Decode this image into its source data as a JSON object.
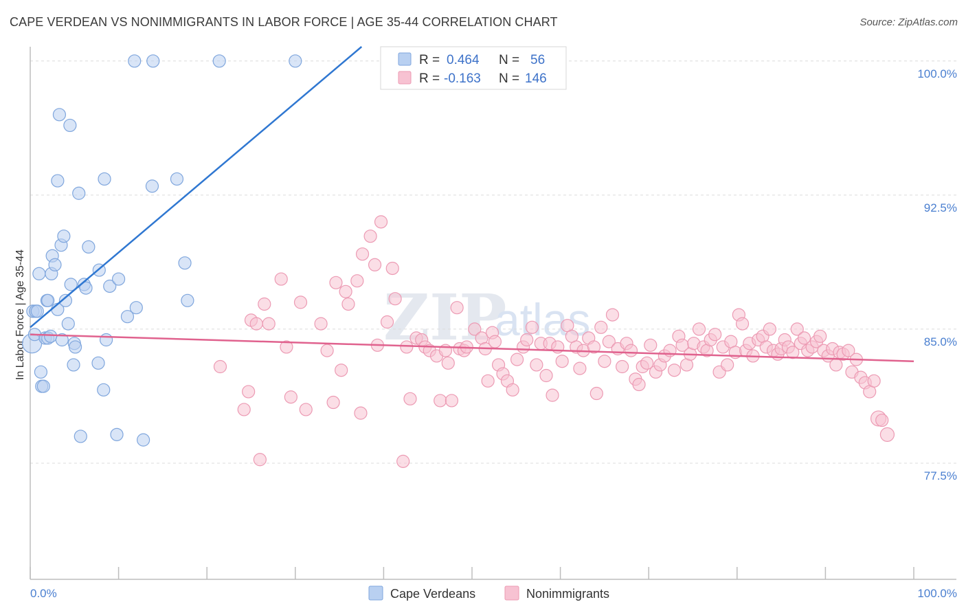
{
  "title": "CAPE VERDEAN VS NONIMMIGRANTS IN LABOR FORCE | AGE 35-44 CORRELATION CHART",
  "source": "Source: ZipAtlas.com",
  "watermark": {
    "zip": "ZIP",
    "atlas": "atlas"
  },
  "colors": {
    "blue_fill": "#b9d0f1",
    "blue_stroke": "#7fa6dd",
    "blue_line": "#2f77d1",
    "pink_fill": "#f7c2d2",
    "pink_stroke": "#ec9ab3",
    "pink_line": "#e0628e",
    "grid": "#dcdcdc",
    "tick_text": "#4a7fd0"
  },
  "legend": {
    "row1": {
      "r_label": "R = ",
      "r_value": "0.464",
      "n_label": "N = ",
      "n_value": "56"
    },
    "row2": {
      "r_label": "R = ",
      "r_value": "-0.163",
      "n_label": "N = ",
      "n_value": "146"
    }
  },
  "bottom_legend": {
    "series1": "Cape Verdeans",
    "series2": "Nonimmigrants"
  },
  "chart_data": {
    "type": "scatter",
    "title": "CAPE VERDEAN VS NONIMMIGRANTS IN LABOR FORCE | AGE 35-44 CORRELATION CHART",
    "xlabel": "",
    "ylabel": "In Labor Force | Age 35-44",
    "xlim": [
      0,
      100
    ],
    "ylim": [
      71.0,
      100.8
    ],
    "x_tick_labels": [
      "0.0%",
      "100.0%"
    ],
    "y_ticks": [
      77.5,
      85.0,
      92.5,
      100.0
    ],
    "y_tick_labels": [
      "77.5%",
      "85.0%",
      "92.5%",
      "100.0%"
    ],
    "series": [
      {
        "name": "Cape Verdeans",
        "r": 0.464,
        "n": 56,
        "trend": {
          "x0": 0.0,
          "y0": 85.1,
          "x1": 37.5,
          "y1": 100.8
        },
        "points": [
          [
            0.2,
            84.2,
            14
          ],
          [
            0.3,
            86.0,
            9
          ],
          [
            0.5,
            84.7,
            9
          ],
          [
            0.6,
            86.0,
            9
          ],
          [
            0.8,
            86.0,
            9
          ],
          [
            1.0,
            88.1,
            9
          ],
          [
            1.2,
            82.6,
            9
          ],
          [
            1.3,
            81.8,
            9
          ],
          [
            1.5,
            81.8,
            9
          ],
          [
            1.7,
            84.5,
            9
          ],
          [
            1.9,
            86.6,
            9
          ],
          [
            2.0,
            86.6,
            9
          ],
          [
            2.0,
            84.5,
            9
          ],
          [
            2.3,
            84.6,
            9
          ],
          [
            2.4,
            88.1,
            9
          ],
          [
            2.5,
            89.1,
            9
          ],
          [
            2.8,
            88.6,
            9
          ],
          [
            3.1,
            86.1,
            9
          ],
          [
            3.1,
            93.3,
            9
          ],
          [
            3.3,
            97.0,
            9
          ],
          [
            3.5,
            89.7,
            9
          ],
          [
            3.6,
            84.4,
            9
          ],
          [
            3.8,
            90.2,
            9
          ],
          [
            4.0,
            86.6,
            9
          ],
          [
            4.3,
            85.3,
            9
          ],
          [
            4.5,
            96.4,
            9
          ],
          [
            4.6,
            87.5,
            9
          ],
          [
            4.9,
            83.0,
            9
          ],
          [
            5.0,
            84.2,
            9
          ],
          [
            5.1,
            84.0,
            9
          ],
          [
            5.5,
            92.6,
            9
          ],
          [
            5.7,
            79.0,
            9
          ],
          [
            6.1,
            87.5,
            9
          ],
          [
            6.3,
            87.3,
            9
          ],
          [
            6.6,
            89.6,
            9
          ],
          [
            7.7,
            83.1,
            9
          ],
          [
            7.8,
            88.3,
            9
          ],
          [
            8.3,
            81.6,
            9
          ],
          [
            8.4,
            93.4,
            9
          ],
          [
            8.6,
            84.4,
            9
          ],
          [
            9.0,
            87.4,
            9
          ],
          [
            9.8,
            79.1,
            9
          ],
          [
            10.0,
            87.8,
            9
          ],
          [
            11.0,
            85.7,
            9
          ],
          [
            11.8,
            100.0,
            9
          ],
          [
            12.0,
            86.2,
            9
          ],
          [
            12.8,
            78.8,
            9
          ],
          [
            13.8,
            93.0,
            9
          ],
          [
            13.9,
            100.0,
            9
          ],
          [
            16.6,
            93.4,
            9
          ],
          [
            17.5,
            88.7,
            9
          ],
          [
            17.8,
            86.6,
            9
          ],
          [
            21.4,
            100.0,
            9
          ],
          [
            30.0,
            100.0,
            9
          ]
        ]
      },
      {
        "name": "Nonimmigrants",
        "r": -0.163,
        "n": 146,
        "trend": {
          "x0": 0.0,
          "y0": 84.7,
          "x1": 100.0,
          "y1": 83.2
        },
        "points": [
          [
            21.5,
            82.9,
            9
          ],
          [
            24.2,
            80.5,
            9
          ],
          [
            24.7,
            81.5,
            9
          ],
          [
            25.0,
            85.5,
            9
          ],
          [
            25.6,
            85.3,
            9
          ],
          [
            26.0,
            77.7,
            9
          ],
          [
            26.5,
            86.4,
            9
          ],
          [
            27.0,
            85.3,
            9
          ],
          [
            28.4,
            87.8,
            9
          ],
          [
            29.0,
            84.0,
            9
          ],
          [
            29.5,
            81.2,
            9
          ],
          [
            30.6,
            86.5,
            9
          ],
          [
            31.2,
            80.5,
            9
          ],
          [
            32.9,
            85.3,
            9
          ],
          [
            33.6,
            83.8,
            9
          ],
          [
            34.3,
            80.9,
            9
          ],
          [
            34.6,
            87.6,
            9
          ],
          [
            35.2,
            82.7,
            9
          ],
          [
            35.7,
            87.1,
            9
          ],
          [
            36.0,
            86.4,
            9
          ],
          [
            37.0,
            87.7,
            9
          ],
          [
            37.4,
            80.3,
            9
          ],
          [
            37.6,
            89.2,
            9
          ],
          [
            38.5,
            90.2,
            9
          ],
          [
            39.0,
            88.6,
            9
          ],
          [
            39.3,
            84.1,
            9
          ],
          [
            39.7,
            91.0,
            9
          ],
          [
            40.4,
            85.4,
            9
          ],
          [
            41.0,
            88.4,
            9
          ],
          [
            41.3,
            86.7,
            9
          ],
          [
            42.2,
            77.6,
            9
          ],
          [
            42.6,
            84.0,
            9
          ],
          [
            43.0,
            81.1,
            9
          ],
          [
            43.7,
            84.5,
            9
          ],
          [
            44.3,
            84.4,
            9
          ],
          [
            44.7,
            84.0,
            9
          ],
          [
            45.2,
            83.8,
            9
          ],
          [
            46.0,
            83.5,
            9
          ],
          [
            46.4,
            81.0,
            9
          ],
          [
            47.0,
            83.8,
            9
          ],
          [
            47.3,
            83.1,
            9
          ],
          [
            47.7,
            81.0,
            9
          ],
          [
            48.3,
            86.2,
            9
          ],
          [
            48.6,
            83.9,
            9
          ],
          [
            49.1,
            83.8,
            9
          ],
          [
            49.4,
            84.0,
            9
          ],
          [
            50.3,
            85.0,
            9
          ],
          [
            51.1,
            84.5,
            9
          ],
          [
            51.5,
            83.9,
            9
          ],
          [
            51.8,
            82.1,
            9
          ],
          [
            52.3,
            84.8,
            9
          ],
          [
            52.6,
            84.3,
            9
          ],
          [
            53.0,
            83.0,
            9
          ],
          [
            53.5,
            82.5,
            9
          ],
          [
            54.0,
            82.1,
            9
          ],
          [
            54.6,
            81.6,
            9
          ],
          [
            55.1,
            83.3,
            9
          ],
          [
            55.8,
            84.0,
            9
          ],
          [
            56.2,
            84.4,
            9
          ],
          [
            56.8,
            85.1,
            9
          ],
          [
            57.3,
            83.0,
            9
          ],
          [
            57.8,
            84.2,
            9
          ],
          [
            58.4,
            82.4,
            9
          ],
          [
            58.8,
            84.2,
            9
          ],
          [
            59.1,
            81.3,
            9
          ],
          [
            59.7,
            84.0,
            9
          ],
          [
            60.2,
            83.2,
            9
          ],
          [
            60.8,
            85.2,
            9
          ],
          [
            61.3,
            84.6,
            9
          ],
          [
            61.8,
            84.0,
            9
          ],
          [
            62.2,
            82.8,
            9
          ],
          [
            62.6,
            83.8,
            9
          ],
          [
            63.2,
            84.5,
            9
          ],
          [
            63.8,
            84.0,
            9
          ],
          [
            64.1,
            81.4,
            9
          ],
          [
            64.6,
            85.1,
            9
          ],
          [
            65.0,
            83.2,
            9
          ],
          [
            65.5,
            84.3,
            9
          ],
          [
            65.9,
            85.8,
            9
          ],
          [
            66.5,
            83.9,
            9
          ],
          [
            67.0,
            82.9,
            9
          ],
          [
            67.5,
            84.2,
            9
          ],
          [
            68.0,
            83.8,
            9
          ],
          [
            68.5,
            82.2,
            9
          ],
          [
            68.9,
            81.9,
            9
          ],
          [
            69.3,
            82.9,
            9
          ],
          [
            69.8,
            83.1,
            9
          ],
          [
            70.2,
            84.1,
            9
          ],
          [
            70.8,
            82.6,
            9
          ],
          [
            71.3,
            83.0,
            9
          ],
          [
            71.8,
            83.5,
            9
          ],
          [
            72.4,
            83.8,
            9
          ],
          [
            72.9,
            82.7,
            9
          ],
          [
            73.4,
            84.6,
            9
          ],
          [
            73.8,
            84.1,
            9
          ],
          [
            74.3,
            83.0,
            9
          ],
          [
            74.7,
            83.6,
            9
          ],
          [
            75.1,
            84.2,
            9
          ],
          [
            75.7,
            85.0,
            9
          ],
          [
            76.2,
            84.0,
            9
          ],
          [
            76.6,
            83.8,
            9
          ],
          [
            77.0,
            84.4,
            9
          ],
          [
            77.5,
            84.7,
            9
          ],
          [
            78.0,
            82.6,
            9
          ],
          [
            78.4,
            84.0,
            9
          ],
          [
            78.9,
            83.0,
            9
          ],
          [
            79.3,
            84.3,
            9
          ],
          [
            79.8,
            83.7,
            9
          ],
          [
            80.2,
            85.8,
            9
          ],
          [
            80.6,
            85.3,
            9
          ],
          [
            81.0,
            83.8,
            9
          ],
          [
            81.4,
            84.2,
            9
          ],
          [
            81.8,
            83.5,
            9
          ],
          [
            82.4,
            84.4,
            9
          ],
          [
            82.9,
            84.6,
            9
          ],
          [
            83.3,
            84.0,
            9
          ],
          [
            83.7,
            85.0,
            9
          ],
          [
            84.1,
            83.8,
            9
          ],
          [
            84.6,
            83.6,
            9
          ],
          [
            85.0,
            83.9,
            9
          ],
          [
            85.4,
            84.4,
            9
          ],
          [
            85.8,
            84.0,
            9
          ],
          [
            86.3,
            83.7,
            9
          ],
          [
            86.8,
            85.0,
            9
          ],
          [
            87.2,
            84.2,
            9
          ],
          [
            87.6,
            84.5,
            9
          ],
          [
            88.0,
            83.8,
            9
          ],
          [
            88.5,
            84.0,
            9
          ],
          [
            89.0,
            84.3,
            9
          ],
          [
            89.4,
            84.6,
            9
          ],
          [
            89.8,
            83.8,
            9
          ],
          [
            90.3,
            83.5,
            9
          ],
          [
            90.8,
            83.9,
            9
          ],
          [
            91.2,
            83.0,
            9
          ],
          [
            91.6,
            83.7,
            9
          ],
          [
            92.0,
            83.6,
            9
          ],
          [
            92.6,
            83.8,
            9
          ],
          [
            93.0,
            82.6,
            9
          ],
          [
            93.5,
            83.3,
            9
          ],
          [
            94.0,
            82.3,
            9
          ],
          [
            94.5,
            82.0,
            9
          ],
          [
            95.0,
            81.5,
            9
          ],
          [
            95.5,
            82.1,
            9
          ],
          [
            96.0,
            80.0,
            11
          ],
          [
            96.4,
            79.9,
            9
          ],
          [
            97.0,
            79.1,
            10
          ]
        ]
      }
    ]
  }
}
